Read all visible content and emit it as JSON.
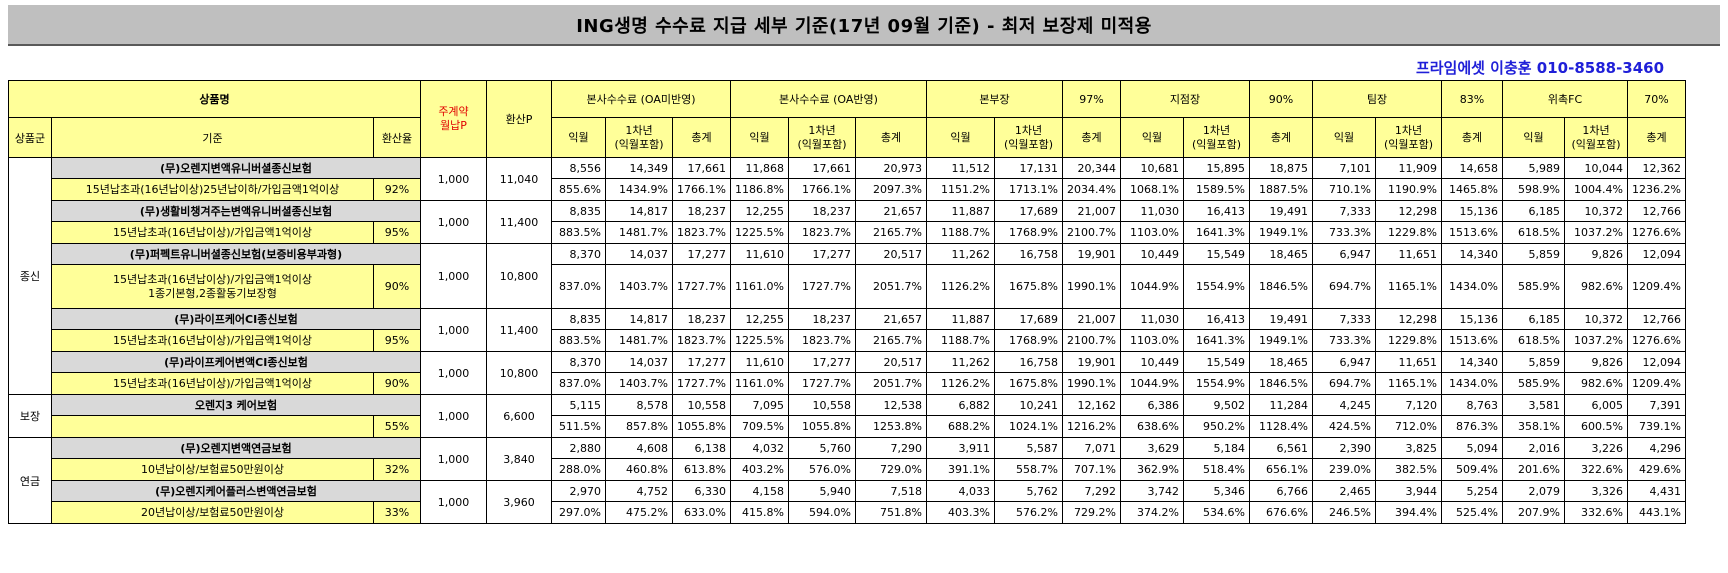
{
  "title": "ING생명 수수료 지급 세부 기준(17년 09월 기준) - 최저 보장제 미적용",
  "contact": "프라임에셋 이충훈 010-8588-3460",
  "header": {
    "product_name": "상품명",
    "main_contract": "주계약\n월납P",
    "converted_p": "환산P",
    "group": "상품군",
    "criteria": "기준",
    "conv_rate": "환산율",
    "sections": [
      {
        "label": "본사수수료 (OA미반영)",
        "rate": ""
      },
      {
        "label": "본사수수료 (OA반영)",
        "rate": ""
      },
      {
        "label": "본부장",
        "rate": "97%"
      },
      {
        "label": "지점장",
        "rate": "90%"
      },
      {
        "label": "팀장",
        "rate": "83%"
      },
      {
        "label": "위촉FC",
        "rate": "70%"
      }
    ],
    "sub": [
      "익월",
      "1차년\n(익월포함)",
      "총계"
    ]
  },
  "groups": [
    {
      "name": "종신",
      "rows": 5
    },
    {
      "name": "보장",
      "rows": 1
    },
    {
      "name": "연금",
      "rows": 2
    }
  ],
  "products": [
    {
      "name": "(무)오렌지변액유니버셜종신보험",
      "criteria": "15년납초과(16년납이상)25년납이하/가입금액1억이상",
      "conv": "92%",
      "main": "1,000",
      "conv_p": "11,040",
      "amounts": [
        "8,556",
        "14,349",
        "17,661",
        "11,868",
        "17,661",
        "20,973",
        "11,512",
        "17,131",
        "20,344",
        "10,681",
        "15,895",
        "18,875",
        "7,101",
        "11,909",
        "14,658",
        "5,989",
        "10,044",
        "12,362"
      ],
      "pcts": [
        "855.6%",
        "1434.9%",
        "1766.1%",
        "1186.8%",
        "1766.1%",
        "2097.3%",
        "1151.2%",
        "1713.1%",
        "2034.4%",
        "1068.1%",
        "1589.5%",
        "1887.5%",
        "710.1%",
        "1190.9%",
        "1465.8%",
        "598.9%",
        "1004.4%",
        "1236.2%"
      ]
    },
    {
      "name": "(무)생활비챙겨주는변액유니버셜종신보험",
      "criteria": "15년납초과(16년납이상)/가입금액1억이상",
      "conv": "95%",
      "main": "1,000",
      "conv_p": "11,400",
      "amounts": [
        "8,835",
        "14,817",
        "18,237",
        "12,255",
        "18,237",
        "21,657",
        "11,887",
        "17,689",
        "21,007",
        "11,030",
        "16,413",
        "19,491",
        "7,333",
        "12,298",
        "15,136",
        "6,185",
        "10,372",
        "12,766"
      ],
      "pcts": [
        "883.5%",
        "1481.7%",
        "1823.7%",
        "1225.5%",
        "1823.7%",
        "2165.7%",
        "1188.7%",
        "1768.9%",
        "2100.7%",
        "1103.0%",
        "1641.3%",
        "1949.1%",
        "733.3%",
        "1229.8%",
        "1513.6%",
        "618.5%",
        "1037.2%",
        "1276.6%"
      ]
    },
    {
      "name": "(무)퍼펙트유니버셜종신보험(보증비용부과형)",
      "criteria": "15년납초과(16년납이상)/가입금액1억이상\n1종기본형,2종활동기보장형",
      "conv": "90%",
      "main": "1,000",
      "conv_p": "10,800",
      "amounts": [
        "8,370",
        "14,037",
        "17,277",
        "11,610",
        "17,277",
        "20,517",
        "11,262",
        "16,758",
        "19,901",
        "10,449",
        "15,549",
        "18,465",
        "6,947",
        "11,651",
        "14,340",
        "5,859",
        "9,826",
        "12,094"
      ],
      "pcts": [
        "837.0%",
        "1403.7%",
        "1727.7%",
        "1161.0%",
        "1727.7%",
        "2051.7%",
        "1126.2%",
        "1675.8%",
        "1990.1%",
        "1044.9%",
        "1554.9%",
        "1846.5%",
        "694.7%",
        "1165.1%",
        "1434.0%",
        "585.9%",
        "982.6%",
        "1209.4%"
      ]
    },
    {
      "name": "(무)라이프케어CI종신보험",
      "criteria": "15년납초과(16년납이상)/가입금액1억이상",
      "conv": "95%",
      "main": "1,000",
      "conv_p": "11,400",
      "amounts": [
        "8,835",
        "14,817",
        "18,237",
        "12,255",
        "18,237",
        "21,657",
        "11,887",
        "17,689",
        "21,007",
        "11,030",
        "16,413",
        "19,491",
        "7,333",
        "12,298",
        "15,136",
        "6,185",
        "10,372",
        "12,766"
      ],
      "pcts": [
        "883.5%",
        "1481.7%",
        "1823.7%",
        "1225.5%",
        "1823.7%",
        "2165.7%",
        "1188.7%",
        "1768.9%",
        "2100.7%",
        "1103.0%",
        "1641.3%",
        "1949.1%",
        "733.3%",
        "1229.8%",
        "1513.6%",
        "618.5%",
        "1037.2%",
        "1276.6%"
      ]
    },
    {
      "name": "(무)라이프케어변액CI종신보험",
      "criteria": "15년납초과(16년납이상)/가입금액1억이상",
      "conv": "90%",
      "main": "1,000",
      "conv_p": "10,800",
      "amounts": [
        "8,370",
        "14,037",
        "17,277",
        "11,610",
        "17,277",
        "20,517",
        "11,262",
        "16,758",
        "19,901",
        "10,449",
        "15,549",
        "18,465",
        "6,947",
        "11,651",
        "14,340",
        "5,859",
        "9,826",
        "12,094"
      ],
      "pcts": [
        "837.0%",
        "1403.7%",
        "1727.7%",
        "1161.0%",
        "1727.7%",
        "2051.7%",
        "1126.2%",
        "1675.8%",
        "1990.1%",
        "1044.9%",
        "1554.9%",
        "1846.5%",
        "694.7%",
        "1165.1%",
        "1434.0%",
        "585.9%",
        "982.6%",
        "1209.4%"
      ]
    },
    {
      "name": "오렌지3 케어보험",
      "criteria": "",
      "conv": "55%",
      "main": "1,000",
      "conv_p": "6,600",
      "amounts": [
        "5,115",
        "8,578",
        "10,558",
        "7,095",
        "10,558",
        "12,538",
        "6,882",
        "10,241",
        "12,162",
        "6,386",
        "9,502",
        "11,284",
        "4,245",
        "7,120",
        "8,763",
        "3,581",
        "6,005",
        "7,391"
      ],
      "pcts": [
        "511.5%",
        "857.8%",
        "1055.8%",
        "709.5%",
        "1055.8%",
        "1253.8%",
        "688.2%",
        "1024.1%",
        "1216.2%",
        "638.6%",
        "950.2%",
        "1128.4%",
        "424.5%",
        "712.0%",
        "876.3%",
        "358.1%",
        "600.5%",
        "739.1%"
      ]
    },
    {
      "name": "(무)오렌지변액연금보험",
      "criteria": "10년납이상/보험료50만원이상",
      "conv": "32%",
      "main": "1,000",
      "conv_p": "3,840",
      "amounts": [
        "2,880",
        "4,608",
        "6,138",
        "4,032",
        "5,760",
        "7,290",
        "3,911",
        "5,587",
        "7,071",
        "3,629",
        "5,184",
        "6,561",
        "2,390",
        "3,825",
        "5,094",
        "2,016",
        "3,226",
        "4,296"
      ],
      "pcts": [
        "288.0%",
        "460.8%",
        "613.8%",
        "403.2%",
        "576.0%",
        "729.0%",
        "391.1%",
        "558.7%",
        "707.1%",
        "362.9%",
        "518.4%",
        "656.1%",
        "239.0%",
        "382.5%",
        "509.4%",
        "201.6%",
        "322.6%",
        "429.6%"
      ]
    },
    {
      "name": "(무)오렌지케어플러스변액연금보험",
      "criteria": "20년납이상/보험료50만원이상",
      "conv": "33%",
      "main": "1,000",
      "conv_p": "3,960",
      "amounts": [
        "2,970",
        "4,752",
        "6,330",
        "4,158",
        "5,940",
        "7,518",
        "4,033",
        "5,762",
        "7,292",
        "3,742",
        "5,346",
        "6,766",
        "2,465",
        "3,944",
        "5,254",
        "2,079",
        "3,326",
        "4,431"
      ],
      "pcts": [
        "297.0%",
        "475.2%",
        "633.0%",
        "415.8%",
        "594.0%",
        "751.8%",
        "403.3%",
        "576.2%",
        "729.2%",
        "374.2%",
        "534.6%",
        "676.6%",
        "246.5%",
        "394.4%",
        "525.4%",
        "207.9%",
        "332.6%",
        "443.1%"
      ]
    }
  ]
}
